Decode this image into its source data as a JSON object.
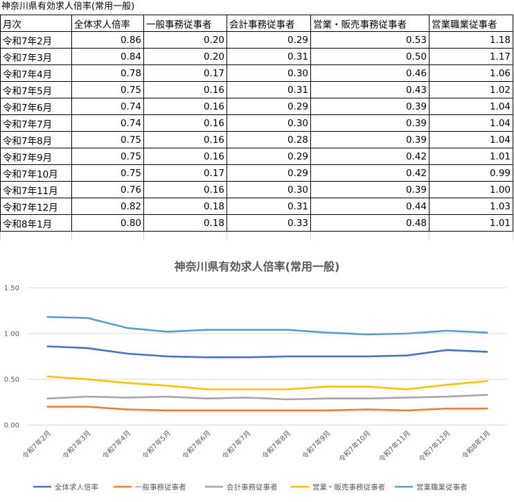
{
  "sheet_title": "神奈川県有効求人倍率(常用一般)",
  "table": {
    "headers": [
      "月次",
      "全体求人倍率",
      "一般事務従事者",
      "会計事務従事者",
      "営業・販売事務従事者",
      "営業職業従事者"
    ],
    "rows": [
      [
        "令和7年2月",
        "0.86",
        "0.20",
        "0.29",
        "0.53",
        "1.18"
      ],
      [
        "令和7年3月",
        "0.84",
        "0.20",
        "0.31",
        "0.50",
        "1.17"
      ],
      [
        "令和7年4月",
        "0.78",
        "0.17",
        "0.30",
        "0.46",
        "1.06"
      ],
      [
        "令和7年5月",
        "0.75",
        "0.16",
        "0.31",
        "0.43",
        "1.02"
      ],
      [
        "令和7年6月",
        "0.74",
        "0.16",
        "0.29",
        "0.39",
        "1.04"
      ],
      [
        "令和7年7月",
        "0.74",
        "0.16",
        "0.30",
        "0.39",
        "1.04"
      ],
      [
        "令和7年8月",
        "0.75",
        "0.16",
        "0.28",
        "0.39",
        "1.04"
      ],
      [
        "令和7年9月",
        "0.75",
        "0.16",
        "0.29",
        "0.42",
        "1.01"
      ],
      [
        "令和7年10月",
        "0.75",
        "0.17",
        "0.29",
        "0.42",
        "0.99"
      ],
      [
        "令和7年11月",
        "0.76",
        "0.16",
        "0.30",
        "0.39",
        "1.00"
      ],
      [
        "令和7年12月",
        "0.82",
        "0.18",
        "0.31",
        "0.44",
        "1.03"
      ],
      [
        "令和8年1月",
        "0.80",
        "0.18",
        "0.33",
        "0.48",
        "1.01"
      ]
    ]
  },
  "chart_data": {
    "type": "line",
    "title": "神奈川県有効求人倍率(常用一般)",
    "xlabel": "",
    "ylabel": "",
    "x": [
      "令和7年2月",
      "令和7年3月",
      "令和7年4月",
      "令和7年5月",
      "令和7年6月",
      "令和7年7月",
      "令和7年8月",
      "令和7年9月",
      "令和7年10月",
      "令和7年11月",
      "令和7年12月",
      "令和8年1月"
    ],
    "ylim": [
      0,
      1.5
    ],
    "yticks": [
      "0.00",
      "0.50",
      "1.00",
      "1.50"
    ],
    "grid": true,
    "legend": "bottom",
    "series": [
      {
        "name": "全体求人倍率",
        "color": "#4472C4",
        "values": [
          0.86,
          0.84,
          0.78,
          0.75,
          0.74,
          0.74,
          0.75,
          0.75,
          0.75,
          0.76,
          0.82,
          0.8
        ]
      },
      {
        "name": "一般事務従事者",
        "color": "#ED7D31",
        "values": [
          0.2,
          0.2,
          0.17,
          0.16,
          0.16,
          0.16,
          0.16,
          0.16,
          0.17,
          0.16,
          0.18,
          0.18
        ]
      },
      {
        "name": "会計事務従事者",
        "color": "#A5A5A5",
        "values": [
          0.29,
          0.31,
          0.3,
          0.31,
          0.29,
          0.3,
          0.28,
          0.29,
          0.29,
          0.3,
          0.31,
          0.33
        ]
      },
      {
        "name": "営業・販売事務従事者",
        "color": "#FFC000",
        "values": [
          0.53,
          0.5,
          0.46,
          0.43,
          0.39,
          0.39,
          0.39,
          0.42,
          0.42,
          0.39,
          0.44,
          0.48
        ]
      },
      {
        "name": "営業職業従事者",
        "color": "#5B9BD5",
        "values": [
          1.18,
          1.17,
          1.06,
          1.02,
          1.04,
          1.04,
          1.04,
          1.01,
          0.99,
          1.0,
          1.03,
          1.01
        ]
      }
    ]
  }
}
